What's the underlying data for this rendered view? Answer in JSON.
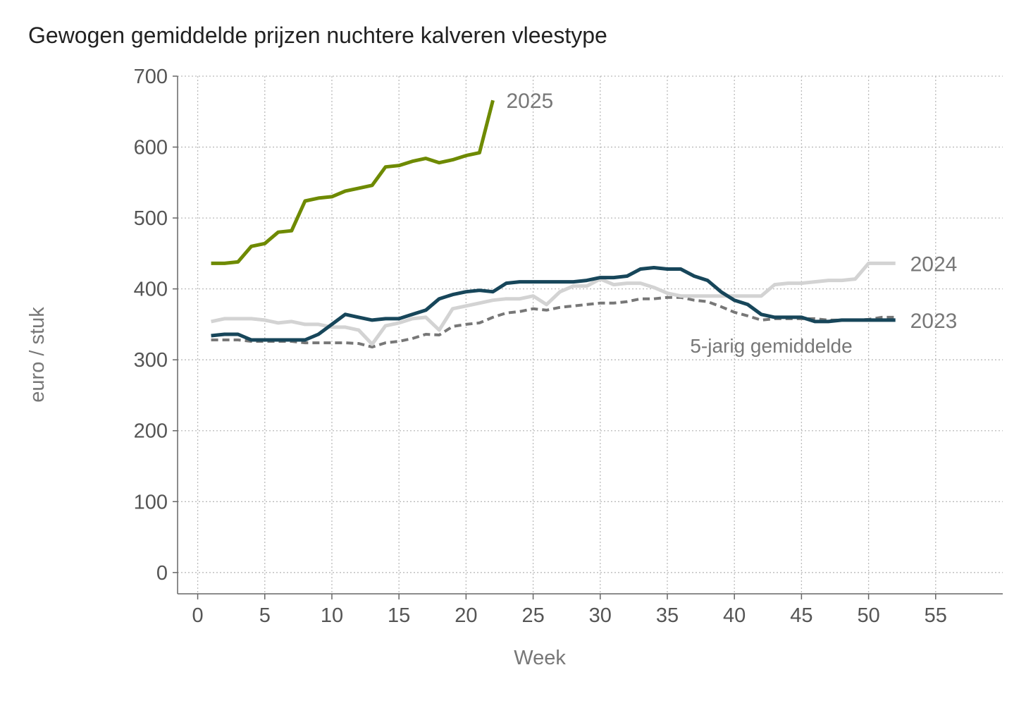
{
  "title": "Gewogen gemiddelde prijzen nuchtere kalveren vleestype",
  "chart_data": {
    "type": "line",
    "title": "Gewogen gemiddelde prijzen nuchtere kalveren vleestype",
    "xlabel": "Week",
    "ylabel": "euro / stuk",
    "xlim": [
      -1.5,
      60
    ],
    "ylim": [
      -30,
      700
    ],
    "xticks": [
      0,
      5,
      10,
      15,
      20,
      25,
      30,
      35,
      40,
      45,
      50,
      55
    ],
    "yticks": [
      0,
      100,
      200,
      300,
      400,
      500,
      600,
      700
    ],
    "grid": true,
    "series": [
      {
        "name": "5-jarig gemiddelde",
        "color": "#777777",
        "dashed": true,
        "x": [
          1,
          2,
          3,
          4,
          5,
          6,
          7,
          8,
          9,
          10,
          11,
          12,
          13,
          14,
          15,
          16,
          17,
          18,
          19,
          20,
          21,
          22,
          23,
          24,
          25,
          26,
          27,
          28,
          29,
          30,
          31,
          32,
          33,
          34,
          35,
          36,
          37,
          38,
          39,
          40,
          41,
          42,
          43,
          44,
          45,
          46,
          47,
          48,
          49,
          50,
          51,
          52
        ],
        "values": [
          328,
          328,
          328,
          326,
          326,
          326,
          326,
          324,
          324,
          324,
          324,
          323,
          318,
          324,
          326,
          330,
          336,
          335,
          347,
          350,
          352,
          360,
          366,
          368,
          372,
          370,
          374,
          376,
          378,
          380,
          380,
          382,
          386,
          386,
          388,
          388,
          384,
          382,
          375,
          367,
          362,
          356,
          358,
          358,
          358,
          358,
          356,
          356,
          356,
          357,
          360,
          360
        ]
      },
      {
        "name": "2024",
        "color": "#d3d3d3",
        "dashed": false,
        "x": [
          1,
          2,
          3,
          4,
          5,
          6,
          7,
          8,
          9,
          10,
          11,
          12,
          13,
          14,
          15,
          16,
          17,
          18,
          19,
          20,
          21,
          22,
          23,
          24,
          25,
          26,
          27,
          28,
          29,
          30,
          31,
          32,
          33,
          34,
          35,
          36,
          37,
          38,
          39,
          40,
          41,
          42,
          43,
          44,
          45,
          46,
          47,
          48,
          49,
          50,
          51,
          52
        ],
        "values": [
          354,
          358,
          358,
          358,
          356,
          352,
          354,
          350,
          350,
          346,
          346,
          342,
          322,
          348,
          352,
          358,
          360,
          342,
          372,
          376,
          380,
          384,
          386,
          386,
          390,
          378,
          396,
          404,
          404,
          414,
          406,
          408,
          408,
          402,
          394,
          390,
          390,
          390,
          390,
          390,
          390,
          390,
          406,
          408,
          408,
          410,
          412,
          412,
          414,
          436,
          436,
          436
        ]
      },
      {
        "name": "2023",
        "color": "#17465a",
        "dashed": false,
        "x": [
          1,
          2,
          3,
          4,
          5,
          6,
          7,
          8,
          9,
          10,
          11,
          12,
          13,
          14,
          15,
          16,
          17,
          18,
          19,
          20,
          21,
          22,
          23,
          24,
          25,
          26,
          27,
          28,
          29,
          30,
          31,
          32,
          33,
          34,
          35,
          36,
          37,
          38,
          39,
          40,
          41,
          42,
          43,
          44,
          45,
          46,
          47,
          48,
          49,
          50,
          51,
          52
        ],
        "values": [
          334,
          336,
          336,
          328,
          328,
          328,
          328,
          328,
          336,
          350,
          364,
          360,
          356,
          358,
          358,
          364,
          370,
          386,
          392,
          396,
          398,
          396,
          408,
          410,
          410,
          410,
          410,
          410,
          412,
          416,
          416,
          418,
          428,
          430,
          428,
          428,
          418,
          412,
          396,
          384,
          378,
          364,
          360,
          360,
          360,
          354,
          354,
          356,
          356,
          356,
          356,
          356
        ]
      },
      {
        "name": "2025",
        "color": "#6e8a00",
        "dashed": false,
        "x": [
          1,
          2,
          3,
          4,
          5,
          6,
          7,
          8,
          9,
          10,
          11,
          12,
          13,
          14,
          15,
          16,
          17,
          18,
          19,
          20,
          21,
          22
        ],
        "values": [
          436,
          436,
          438,
          460,
          464,
          480,
          482,
          524,
          528,
          530,
          538,
          542,
          546,
          572,
          574,
          580,
          584,
          578,
          582,
          588,
          592,
          666
        ]
      }
    ],
    "labels": {
      "s2025": "2025",
      "s2024": "2024",
      "s2023": "2023",
      "avg": "5-jarig gemiddelde"
    }
  }
}
